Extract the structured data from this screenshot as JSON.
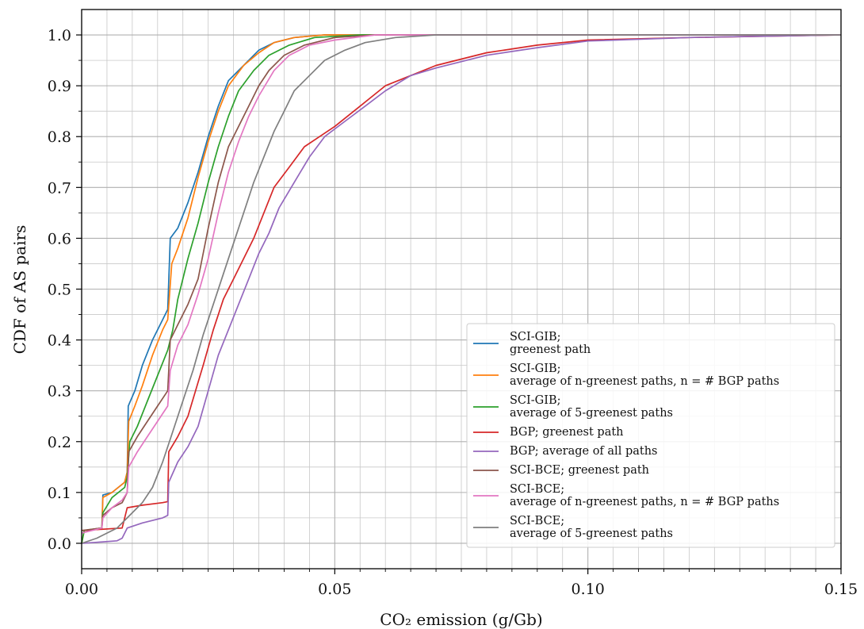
{
  "chart_data": {
    "type": "line",
    "xlabel": "CO₂ emission (g/Gb)",
    "ylabel": "CDF of AS pairs",
    "xlim": [
      0.0,
      0.15
    ],
    "ylim": [
      -0.05,
      1.05
    ],
    "x_ticks": [
      "0.00",
      "0.05",
      "0.10",
      "0.15"
    ],
    "y_ticks": [
      "0.0",
      "0.1",
      "0.2",
      "0.3",
      "0.4",
      "0.5",
      "0.6",
      "0.7",
      "0.8",
      "0.9",
      "1.0"
    ],
    "grid": true,
    "legend_position": "lower-right",
    "series": [
      {
        "name": "SCI-GIB;\ngreenest path",
        "color": "#1f77b4",
        "points": [
          [
            0,
            0
          ],
          [
            0.0005,
            0.025
          ],
          [
            0.004,
            0.03
          ],
          [
            0.0042,
            0.095
          ],
          [
            0.006,
            0.1
          ],
          [
            0.0085,
            0.12
          ],
          [
            0.009,
            0.14
          ],
          [
            0.0092,
            0.27
          ],
          [
            0.0105,
            0.3
          ],
          [
            0.012,
            0.35
          ],
          [
            0.014,
            0.4
          ],
          [
            0.016,
            0.44
          ],
          [
            0.017,
            0.46
          ],
          [
            0.0175,
            0.6
          ],
          [
            0.019,
            0.62
          ],
          [
            0.021,
            0.67
          ],
          [
            0.023,
            0.73
          ],
          [
            0.025,
            0.8
          ],
          [
            0.027,
            0.86
          ],
          [
            0.029,
            0.91
          ],
          [
            0.032,
            0.94
          ],
          [
            0.035,
            0.97
          ],
          [
            0.038,
            0.985
          ],
          [
            0.042,
            0.995
          ],
          [
            0.048,
            1.0
          ],
          [
            0.15,
            1.0
          ]
        ]
      },
      {
        "name": "SCI-GIB;\naverage of n-greenest paths, n = # BGP paths",
        "color": "#ff7f0e",
        "points": [
          [
            0,
            0
          ],
          [
            0.0005,
            0.025
          ],
          [
            0.004,
            0.03
          ],
          [
            0.0042,
            0.09
          ],
          [
            0.006,
            0.1
          ],
          [
            0.0085,
            0.12
          ],
          [
            0.009,
            0.14
          ],
          [
            0.0093,
            0.24
          ],
          [
            0.0105,
            0.27
          ],
          [
            0.012,
            0.31
          ],
          [
            0.014,
            0.37
          ],
          [
            0.016,
            0.42
          ],
          [
            0.017,
            0.44
          ],
          [
            0.0178,
            0.55
          ],
          [
            0.019,
            0.58
          ],
          [
            0.021,
            0.64
          ],
          [
            0.023,
            0.72
          ],
          [
            0.025,
            0.79
          ],
          [
            0.027,
            0.85
          ],
          [
            0.029,
            0.9
          ],
          [
            0.032,
            0.94
          ],
          [
            0.035,
            0.965
          ],
          [
            0.038,
            0.985
          ],
          [
            0.042,
            0.995
          ],
          [
            0.048,
            1.0
          ],
          [
            0.15,
            1.0
          ]
        ]
      },
      {
        "name": "SCI-GIB;\naverage of 5-greenest paths",
        "color": "#2ca02c",
        "points": [
          [
            0,
            0
          ],
          [
            0.0005,
            0.025
          ],
          [
            0.004,
            0.03
          ],
          [
            0.0042,
            0.06
          ],
          [
            0.006,
            0.09
          ],
          [
            0.0085,
            0.11
          ],
          [
            0.009,
            0.13
          ],
          [
            0.0095,
            0.2
          ],
          [
            0.011,
            0.23
          ],
          [
            0.013,
            0.28
          ],
          [
            0.015,
            0.33
          ],
          [
            0.017,
            0.38
          ],
          [
            0.018,
            0.42
          ],
          [
            0.019,
            0.48
          ],
          [
            0.021,
            0.56
          ],
          [
            0.023,
            0.63
          ],
          [
            0.025,
            0.71
          ],
          [
            0.027,
            0.78
          ],
          [
            0.029,
            0.84
          ],
          [
            0.031,
            0.89
          ],
          [
            0.034,
            0.93
          ],
          [
            0.037,
            0.96
          ],
          [
            0.041,
            0.98
          ],
          [
            0.046,
            0.995
          ],
          [
            0.055,
            1.0
          ],
          [
            0.15,
            1.0
          ]
        ]
      },
      {
        "name": "BGP; greenest path",
        "color": "#d62728",
        "points": [
          [
            0,
            0.025
          ],
          [
            0.008,
            0.03
          ],
          [
            0.0085,
            0.05
          ],
          [
            0.009,
            0.07
          ],
          [
            0.012,
            0.075
          ],
          [
            0.016,
            0.08
          ],
          [
            0.017,
            0.082
          ],
          [
            0.0172,
            0.18
          ],
          [
            0.019,
            0.21
          ],
          [
            0.021,
            0.25
          ],
          [
            0.024,
            0.35
          ],
          [
            0.026,
            0.42
          ],
          [
            0.028,
            0.48
          ],
          [
            0.03,
            0.52
          ],
          [
            0.032,
            0.56
          ],
          [
            0.034,
            0.6
          ],
          [
            0.036,
            0.65
          ],
          [
            0.038,
            0.7
          ],
          [
            0.041,
            0.74
          ],
          [
            0.044,
            0.78
          ],
          [
            0.047,
            0.8
          ],
          [
            0.05,
            0.82
          ],
          [
            0.055,
            0.86
          ],
          [
            0.06,
            0.9
          ],
          [
            0.065,
            0.92
          ],
          [
            0.07,
            0.94
          ],
          [
            0.08,
            0.965
          ],
          [
            0.09,
            0.98
          ],
          [
            0.1,
            0.99
          ],
          [
            0.12,
            0.995
          ],
          [
            0.15,
            1.0
          ]
        ]
      },
      {
        "name": "BGP; average of all paths",
        "color": "#9467bd",
        "points": [
          [
            0,
            0
          ],
          [
            0.003,
            0.002
          ],
          [
            0.007,
            0.005
          ],
          [
            0.008,
            0.01
          ],
          [
            0.009,
            0.03
          ],
          [
            0.012,
            0.04
          ],
          [
            0.016,
            0.05
          ],
          [
            0.017,
            0.055
          ],
          [
            0.0172,
            0.12
          ],
          [
            0.019,
            0.16
          ],
          [
            0.021,
            0.19
          ],
          [
            0.023,
            0.23
          ],
          [
            0.025,
            0.3
          ],
          [
            0.027,
            0.37
          ],
          [
            0.029,
            0.42
          ],
          [
            0.031,
            0.47
          ],
          [
            0.033,
            0.52
          ],
          [
            0.035,
            0.57
          ],
          [
            0.037,
            0.61
          ],
          [
            0.039,
            0.66
          ],
          [
            0.042,
            0.71
          ],
          [
            0.045,
            0.76
          ],
          [
            0.048,
            0.8
          ],
          [
            0.052,
            0.83
          ],
          [
            0.056,
            0.86
          ],
          [
            0.06,
            0.89
          ],
          [
            0.065,
            0.92
          ],
          [
            0.07,
            0.935
          ],
          [
            0.08,
            0.96
          ],
          [
            0.09,
            0.975
          ],
          [
            0.1,
            0.988
          ],
          [
            0.12,
            0.995
          ],
          [
            0.15,
            1.0
          ]
        ]
      },
      {
        "name": "SCI-BCE; greenest path",
        "color": "#8c564b",
        "points": [
          [
            0,
            0.025
          ],
          [
            0.004,
            0.03
          ],
          [
            0.0042,
            0.055
          ],
          [
            0.006,
            0.07
          ],
          [
            0.008,
            0.08
          ],
          [
            0.009,
            0.1
          ],
          [
            0.0093,
            0.18
          ],
          [
            0.011,
            0.21
          ],
          [
            0.013,
            0.24
          ],
          [
            0.015,
            0.27
          ],
          [
            0.017,
            0.3
          ],
          [
            0.0175,
            0.4
          ],
          [
            0.019,
            0.43
          ],
          [
            0.021,
            0.47
          ],
          [
            0.023,
            0.52
          ],
          [
            0.025,
            0.62
          ],
          [
            0.027,
            0.71
          ],
          [
            0.029,
            0.78
          ],
          [
            0.031,
            0.82
          ],
          [
            0.033,
            0.86
          ],
          [
            0.035,
            0.9
          ],
          [
            0.037,
            0.93
          ],
          [
            0.04,
            0.96
          ],
          [
            0.044,
            0.98
          ],
          [
            0.05,
            0.995
          ],
          [
            0.058,
            1.0
          ],
          [
            0.15,
            1.0
          ]
        ]
      },
      {
        "name": "SCI-BCE;\naverage of n-greenest paths, n = # BGP paths",
        "color": "#e377c2",
        "points": [
          [
            0,
            0.02
          ],
          [
            0.004,
            0.03
          ],
          [
            0.0042,
            0.05
          ],
          [
            0.006,
            0.07
          ],
          [
            0.008,
            0.085
          ],
          [
            0.009,
            0.1
          ],
          [
            0.0093,
            0.15
          ],
          [
            0.011,
            0.18
          ],
          [
            0.013,
            0.21
          ],
          [
            0.015,
            0.24
          ],
          [
            0.017,
            0.27
          ],
          [
            0.0175,
            0.34
          ],
          [
            0.019,
            0.39
          ],
          [
            0.021,
            0.43
          ],
          [
            0.023,
            0.49
          ],
          [
            0.025,
            0.56
          ],
          [
            0.027,
            0.65
          ],
          [
            0.029,
            0.73
          ],
          [
            0.031,
            0.79
          ],
          [
            0.033,
            0.84
          ],
          [
            0.035,
            0.88
          ],
          [
            0.038,
            0.93
          ],
          [
            0.041,
            0.96
          ],
          [
            0.045,
            0.98
          ],
          [
            0.05,
            0.99
          ],
          [
            0.058,
            1.0
          ],
          [
            0.15,
            1.0
          ]
        ]
      },
      {
        "name": "SCI-BCE;\naverage of 5-greenest paths",
        "color": "#7f7f7f",
        "points": [
          [
            0,
            0
          ],
          [
            0.003,
            0.01
          ],
          [
            0.005,
            0.02
          ],
          [
            0.007,
            0.03
          ],
          [
            0.009,
            0.05
          ],
          [
            0.012,
            0.08
          ],
          [
            0.014,
            0.11
          ],
          [
            0.016,
            0.16
          ],
          [
            0.018,
            0.22
          ],
          [
            0.02,
            0.28
          ],
          [
            0.022,
            0.34
          ],
          [
            0.024,
            0.41
          ],
          [
            0.026,
            0.47
          ],
          [
            0.028,
            0.53
          ],
          [
            0.03,
            0.59
          ],
          [
            0.032,
            0.65
          ],
          [
            0.034,
            0.71
          ],
          [
            0.036,
            0.76
          ],
          [
            0.038,
            0.81
          ],
          [
            0.04,
            0.85
          ],
          [
            0.042,
            0.89
          ],
          [
            0.045,
            0.92
          ],
          [
            0.048,
            0.95
          ],
          [
            0.052,
            0.97
          ],
          [
            0.056,
            0.985
          ],
          [
            0.062,
            0.995
          ],
          [
            0.07,
            1.0
          ],
          [
            0.15,
            1.0
          ]
        ]
      }
    ]
  }
}
